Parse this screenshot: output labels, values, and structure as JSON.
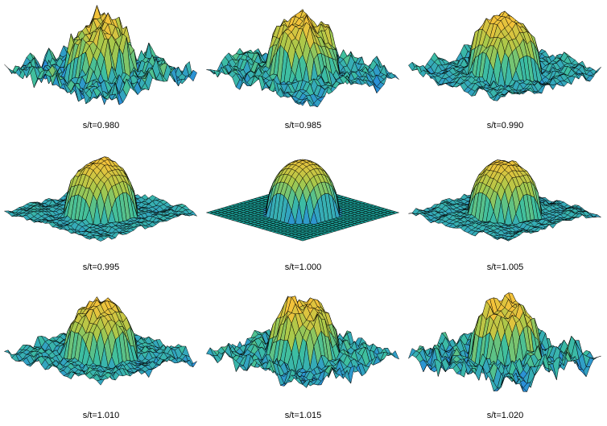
{
  "figure": {
    "panels": [
      {
        "label": "s/t=0.980",
        "ratio": 0.98
      },
      {
        "label": "s/t=0.985",
        "ratio": 0.985
      },
      {
        "label": "s/t=0.990",
        "ratio": 0.99
      },
      {
        "label": "s/t=0.995",
        "ratio": 0.995
      },
      {
        "label": "s/t=1.000",
        "ratio": 1.0
      },
      {
        "label": "s/t=1.005",
        "ratio": 1.005
      },
      {
        "label": "s/t=1.010",
        "ratio": 1.01
      },
      {
        "label": "s/t=1.015",
        "ratio": 1.015
      },
      {
        "label": "s/t=1.020",
        "ratio": 1.02
      }
    ],
    "colors": {
      "low": "#2a8fd8",
      "mid": "#3dbfa0",
      "mid2": "#a8c84a",
      "high": "#f2c23a",
      "flat": "#1ba39a",
      "edge": "#000000"
    }
  }
}
